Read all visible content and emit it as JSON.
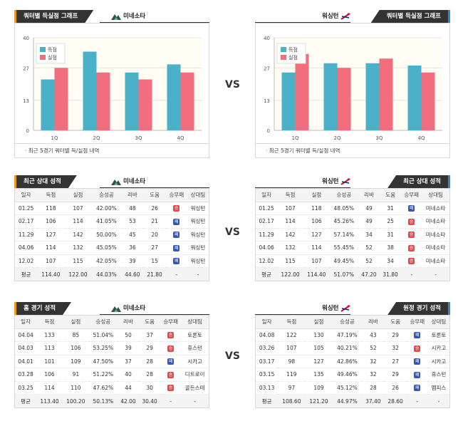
{
  "colors": {
    "score": "#4bb1c9",
    "lost": "#f26d7d",
    "win": "#e24a4a",
    "loss": "#3557b4"
  },
  "left_team": "미네소타",
  "right_team": "워싱턴",
  "vs": "VS",
  "quarter_chart": {
    "title": "쿼터별 득실점 그래프",
    "note": "· 최근 5경기 쿼터별 득/실점 내역",
    "legend_score": "득점",
    "legend_lost": "실점",
    "ticks": [
      "0",
      "13",
      "27",
      "40"
    ],
    "categories": [
      "1Q",
      "2Q",
      "3Q",
      "4Q"
    ]
  },
  "chart_data": [
    {
      "type": "bar",
      "team": "미네소타",
      "categories": [
        "1Q",
        "2Q",
        "3Q",
        "4Q"
      ],
      "ylim": [
        0,
        40
      ],
      "series": [
        {
          "name": "득점",
          "values": [
            22,
            34,
            25,
            28.5
          ]
        },
        {
          "name": "실점",
          "values": [
            27,
            25,
            22,
            25
          ]
        }
      ]
    },
    {
      "type": "bar",
      "team": "워싱턴",
      "categories": [
        "1Q",
        "2Q",
        "3Q",
        "4Q"
      ],
      "ylim": [
        0,
        40
      ],
      "series": [
        {
          "name": "득점",
          "values": [
            25,
            29,
            29,
            28
          ]
        },
        {
          "name": "실점",
          "values": [
            33,
            27,
            31,
            25
          ]
        }
      ]
    }
  ],
  "columns": [
    "일자",
    "득점",
    "실점",
    "승성공",
    "리바",
    "도움",
    "승무패",
    "상대팀"
  ],
  "recent": {
    "title": "최근 상대 성적",
    "left_rows": [
      [
        "01.25",
        "118",
        "107",
        "42.00%",
        "48",
        "26",
        "승",
        "워싱턴"
      ],
      [
        "02.17",
        "106",
        "114",
        "41.05%",
        "53",
        "21",
        "패",
        "워싱턴"
      ],
      [
        "11.29",
        "127",
        "142",
        "50.00%",
        "45",
        "20",
        "패",
        "워싱턴"
      ],
      [
        "04.06",
        "114",
        "132",
        "45.05%",
        "36",
        "27",
        "패",
        "워싱턴"
      ],
      [
        "12.02",
        "107",
        "115",
        "42.05%",
        "39",
        "15",
        "패",
        "워싱턴"
      ]
    ],
    "left_avg": [
      "평균",
      "114.40",
      "122.00",
      "44.03%",
      "44.60",
      "21.80",
      "-",
      "-"
    ],
    "right_rows": [
      [
        "01.25",
        "107",
        "118",
        "48.05%",
        "49",
        "31",
        "패",
        "미네소타"
      ],
      [
        "02.17",
        "114",
        "106",
        "45.26%",
        "49",
        "25",
        "승",
        "미네소타"
      ],
      [
        "11.29",
        "142",
        "127",
        "57.14%",
        "34",
        "31",
        "승",
        "미네소타"
      ],
      [
        "04.06",
        "132",
        "114",
        "55.45%",
        "52",
        "38",
        "승",
        "미네소타"
      ],
      [
        "12.02",
        "115",
        "107",
        "49.45%",
        "52",
        "34",
        "승",
        "미네소타"
      ]
    ],
    "right_avg": [
      "평균",
      "122.00",
      "114.40",
      "51.07%",
      "47.20",
      "31.80",
      "-",
      "-"
    ]
  },
  "home": {
    "title": "홈 경기 성적",
    "rows": [
      [
        "04.04",
        "133",
        "85",
        "51.04%",
        "50",
        "37",
        "승",
        "토론토"
      ],
      [
        "04.03",
        "113",
        "106",
        "53.25%",
        "39",
        "29",
        "승",
        "휴스턴"
      ],
      [
        "04.01",
        "101",
        "109",
        "47.50%",
        "37",
        "28",
        "패",
        "시카고"
      ],
      [
        "03.28",
        "106",
        "91",
        "51.22%",
        "40",
        "28",
        "승",
        "디트로이"
      ],
      [
        "03.25",
        "114",
        "110",
        "47.62%",
        "44",
        "30",
        "승",
        "골든스테"
      ]
    ],
    "avg": [
      "평균",
      "113.40",
      "100.20",
      "50.13%",
      "42.00",
      "30.40",
      "-",
      "-"
    ]
  },
  "away": {
    "title": "원정 경기 성적",
    "rows": [
      [
        "04.08",
        "122",
        "130",
        "47.19%",
        "43",
        "29",
        "패",
        "토론토"
      ],
      [
        "03.26",
        "107",
        "105",
        "40.21%",
        "52",
        "32",
        "승",
        "시카고"
      ],
      [
        "03.17",
        "98",
        "127",
        "42.86%",
        "32",
        "27",
        "패",
        "시카고"
      ],
      [
        "03.15",
        "119",
        "135",
        "49.46%",
        "32",
        "29",
        "패",
        "휴스턴"
      ],
      [
        "03.13",
        "97",
        "109",
        "45.12%",
        "28",
        "26",
        "패",
        "멤피스"
      ]
    ],
    "avg": [
      "평균",
      "108.60",
      "121.20",
      "44.97%",
      "37.40",
      "28.60",
      "-",
      "-"
    ]
  }
}
